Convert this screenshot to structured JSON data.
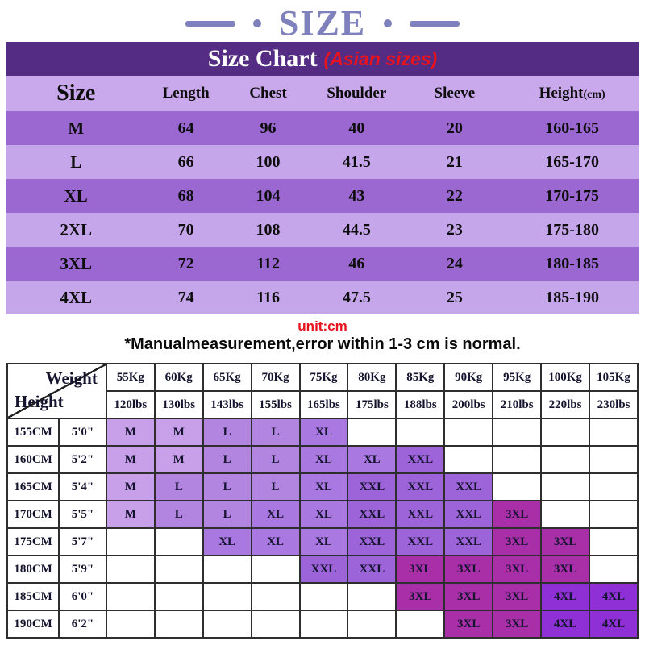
{
  "banner": {
    "title": "SIZE"
  },
  "size_chart": {
    "title": "Size Chart",
    "subtitle": "(Asian sizes)",
    "columns": [
      {
        "label": "Size"
      },
      {
        "label": "Length"
      },
      {
        "label": "Chest"
      },
      {
        "label": "Shoulder"
      },
      {
        "label": "Sleeve"
      },
      {
        "label": "Height",
        "sub": "(cm)"
      }
    ],
    "rows": [
      [
        "M",
        "64",
        "96",
        "40",
        "20",
        "160-165"
      ],
      [
        "L",
        "66",
        "100",
        "41.5",
        "21",
        "165-170"
      ],
      [
        "XL",
        "68",
        "104",
        "43",
        "22",
        "170-175"
      ],
      [
        "2XL",
        "70",
        "108",
        "44.5",
        "23",
        "175-180"
      ],
      [
        "3XL",
        "72",
        "112",
        "46",
        "24",
        "180-185"
      ],
      [
        "4XL",
        "74",
        "116",
        "47.5",
        "25",
        "185-190"
      ]
    ],
    "unit_note": "unit:cm",
    "disclaimer": "*Manualmeasurement,error within 1-3 cm is normal."
  },
  "fit_table": {
    "corner": {
      "top_right": "Weight",
      "bottom_left": "Height"
    },
    "weights_kg": [
      "55Kg",
      "60Kg",
      "65Kg",
      "70Kg",
      "75Kg",
      "80Kg",
      "85Kg",
      "90Kg",
      "95Kg",
      "100Kg",
      "105Kg"
    ],
    "weights_lbs": [
      "120lbs",
      "130lbs",
      "143lbs",
      "155lbs",
      "165lbs",
      "175lbs",
      "188lbs",
      "200lbs",
      "210lbs",
      "220lbs",
      "230lbs"
    ],
    "rows": [
      {
        "cm": "155CM",
        "ft": "5'0\"",
        "sizes": [
          "M",
          "M",
          "L",
          "L",
          "XL",
          "",
          "",
          "",
          "",
          "",
          ""
        ]
      },
      {
        "cm": "160CM",
        "ft": "5'2\"",
        "sizes": [
          "M",
          "M",
          "L",
          "L",
          "XL",
          "XL",
          "XXL",
          "",
          "",
          "",
          ""
        ]
      },
      {
        "cm": "165CM",
        "ft": "5'4\"",
        "sizes": [
          "M",
          "L",
          "L",
          "L",
          "XL",
          "XXL",
          "XXL",
          "XXL",
          "",
          "",
          ""
        ]
      },
      {
        "cm": "170CM",
        "ft": "5'5\"",
        "sizes": [
          "M",
          "L",
          "L",
          "XL",
          "XL",
          "XXL",
          "XXL",
          "XXL",
          "3XL",
          "",
          ""
        ]
      },
      {
        "cm": "175CM",
        "ft": "5'7\"",
        "sizes": [
          "",
          "",
          "XL",
          "XL",
          "XL",
          "XXL",
          "XXL",
          "XXL",
          "3XL",
          "3XL",
          ""
        ]
      },
      {
        "cm": "180CM",
        "ft": "5'9\"",
        "sizes": [
          "",
          "",
          "",
          "",
          "XXL",
          "XXL",
          "3XL",
          "3XL",
          "3XL",
          "3XL",
          ""
        ]
      },
      {
        "cm": "185CM",
        "ft": "6'0\"",
        "sizes": [
          "",
          "",
          "",
          "",
          "",
          "",
          "3XL",
          "3XL",
          "3XL",
          "4XL",
          "4XL"
        ]
      },
      {
        "cm": "190CM",
        "ft": "6'2\"",
        "sizes": [
          "",
          "",
          "",
          "",
          "",
          "",
          "",
          "3XL",
          "3XL",
          "4XL",
          "4XL"
        ]
      }
    ]
  },
  "colors": {
    "banner_text": "#7f81bc",
    "title_bar_bg": "#552c84",
    "subtitle_red": "#e8131d",
    "header_row_bg": "#c9a9ec",
    "row_dark_bg": "#9a68d0",
    "row_light_bg": "#c6a6ea",
    "unit_red": "#e8131d",
    "size_cell": {
      "M": "#c89fe9",
      "L": "#b285e1",
      "XL": "#a978e0",
      "XXL": "#9c64d8",
      "3XL": "#a92fa9",
      "4XL": "#8e30d5"
    }
  }
}
